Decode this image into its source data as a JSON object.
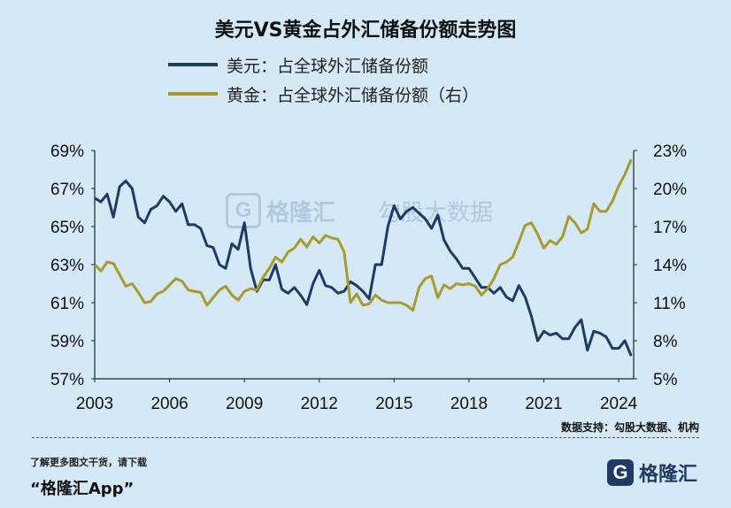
{
  "chart_data": {
    "type": "line",
    "title": "美元VS黄金占外汇储备份额走势图",
    "x_ticks": [
      "2003",
      "2006",
      "2009",
      "2012",
      "2015",
      "2018",
      "2021",
      "2024"
    ],
    "y_left": {
      "ticks": [
        "69%",
        "67%",
        "65%",
        "63%",
        "61%",
        "59%",
        "57%"
      ],
      "range": [
        57,
        69
      ],
      "unit": "%"
    },
    "y_right": {
      "ticks": [
        "23%",
        "20%",
        "17%",
        "14%",
        "11%",
        "8%",
        "5%"
      ],
      "range": [
        5,
        23
      ],
      "unit": "%"
    },
    "grid": false,
    "legend_position": "top",
    "series": [
      {
        "name": "美元：占全球外汇储备份额",
        "axis": "left",
        "color": "#1f3a63",
        "x": [
          2003.0,
          2003.25,
          2003.5,
          2003.75,
          2004.0,
          2004.25,
          2004.5,
          2004.75,
          2005.0,
          2005.25,
          2005.5,
          2005.75,
          2006.0,
          2006.25,
          2006.5,
          2006.75,
          2007.0,
          2007.25,
          2007.5,
          2007.75,
          2008.0,
          2008.25,
          2008.5,
          2008.75,
          2009.0,
          2009.25,
          2009.5,
          2009.75,
          2010.0,
          2010.25,
          2010.5,
          2010.75,
          2011.0,
          2011.25,
          2011.5,
          2011.75,
          2012.0,
          2012.25,
          2012.5,
          2012.75,
          2013.0,
          2013.25,
          2013.5,
          2013.75,
          2014.0,
          2014.25,
          2014.5,
          2014.75,
          2015.0,
          2015.25,
          2015.5,
          2015.75,
          2016.0,
          2016.25,
          2016.5,
          2016.75,
          2017.0,
          2017.25,
          2017.5,
          2017.75,
          2018.0,
          2018.25,
          2018.5,
          2018.75,
          2019.0,
          2019.25,
          2019.5,
          2019.75,
          2020.0,
          2020.25,
          2020.5,
          2020.75,
          2021.0,
          2021.25,
          2021.5,
          2021.75,
          2022.0,
          2022.25,
          2022.5,
          2022.75,
          2023.0,
          2023.25,
          2023.5,
          2023.75,
          2024.0,
          2024.25,
          2024.5
        ],
        "y": [
          66.5,
          66.3,
          66.7,
          65.5,
          67.1,
          67.4,
          67.0,
          65.5,
          65.2,
          65.9,
          66.1,
          66.6,
          66.3,
          65.8,
          66.2,
          65.1,
          65.1,
          64.9,
          64.0,
          63.9,
          63.0,
          62.8,
          64.1,
          63.8,
          65.2,
          62.8,
          61.6,
          62.2,
          62.2,
          63.0,
          61.7,
          61.5,
          61.8,
          61.4,
          60.9,
          62.0,
          62.7,
          61.9,
          61.8,
          61.5,
          61.6,
          62.1,
          61.9,
          61.6,
          61.2,
          63.0,
          63.0,
          65.0,
          66.1,
          65.4,
          65.8,
          66.0,
          65.7,
          65.4,
          64.9,
          65.6,
          64.3,
          63.7,
          63.3,
          62.8,
          62.8,
          62.3,
          61.8,
          61.8,
          61.5,
          61.8,
          61.3,
          61.1,
          61.9,
          61.3,
          60.3,
          59.0,
          59.5,
          59.3,
          59.4,
          59.1,
          59.1,
          59.7,
          60.1,
          58.5,
          59.5,
          59.4,
          59.2,
          58.6,
          58.6,
          59.0,
          58.2
        ]
      },
      {
        "name": "黄金：占全球外汇储备份额（右）",
        "axis": "right",
        "color": "#a89a2c",
        "x": [
          2003.0,
          2003.25,
          2003.5,
          2003.75,
          2004.0,
          2004.25,
          2004.5,
          2004.75,
          2005.0,
          2005.25,
          2005.5,
          2005.75,
          2006.0,
          2006.25,
          2006.5,
          2006.75,
          2007.0,
          2007.25,
          2007.5,
          2007.75,
          2008.0,
          2008.25,
          2008.5,
          2008.75,
          2009.0,
          2009.25,
          2009.5,
          2009.75,
          2010.0,
          2010.25,
          2010.5,
          2010.75,
          2011.0,
          2011.25,
          2011.5,
          2011.75,
          2012.0,
          2012.25,
          2012.5,
          2012.75,
          2013.0,
          2013.25,
          2013.5,
          2013.75,
          2014.0,
          2014.25,
          2014.5,
          2014.75,
          2015.0,
          2015.25,
          2015.5,
          2015.75,
          2016.0,
          2016.25,
          2016.5,
          2016.75,
          2017.0,
          2017.25,
          2017.5,
          2017.75,
          2018.0,
          2018.25,
          2018.5,
          2018.75,
          2019.0,
          2019.25,
          2019.5,
          2019.75,
          2020.0,
          2020.25,
          2020.5,
          2020.75,
          2021.0,
          2021.25,
          2021.5,
          2021.75,
          2022.0,
          2022.25,
          2022.5,
          2022.75,
          2023.0,
          2023.25,
          2023.5,
          2023.75,
          2024.0,
          2024.25,
          2024.5
        ],
        "y": [
          14.0,
          13.5,
          14.2,
          14.1,
          13.2,
          12.3,
          12.5,
          11.8,
          11.0,
          11.1,
          11.7,
          11.9,
          12.4,
          12.9,
          12.7,
          12.0,
          11.9,
          11.8,
          10.8,
          11.4,
          12.0,
          12.3,
          11.6,
          11.2,
          11.9,
          12.1,
          12.0,
          13.0,
          13.7,
          14.6,
          14.2,
          15.0,
          15.3,
          16.0,
          15.4,
          16.2,
          15.7,
          16.3,
          16.1,
          16.0,
          15.0,
          11.0,
          11.7,
          10.8,
          10.9,
          11.6,
          11.2,
          11.0,
          11.0,
          11.0,
          10.8,
          10.4,
          12.2,
          12.9,
          13.1,
          11.4,
          12.4,
          12.1,
          12.5,
          12.4,
          12.5,
          12.3,
          11.6,
          12.1,
          12.9,
          14.0,
          14.2,
          14.6,
          15.8,
          17.1,
          17.3,
          16.4,
          15.3,
          15.9,
          15.6,
          16.2,
          17.8,
          17.3,
          16.5,
          16.8,
          18.8,
          18.2,
          18.2,
          19.0,
          20.2,
          21.1,
          22.3
        ]
      }
    ]
  },
  "source_note": "数据支持：勾股大数据、机构",
  "footer": {
    "tip": "了解更多图文干货，请下载",
    "app": "“格隆汇App”",
    "logo_mark": "G",
    "logo_name": "格隆汇"
  },
  "watermark": {
    "mark": "G",
    "name": "格隆汇",
    "partner": "勾股大数据"
  }
}
